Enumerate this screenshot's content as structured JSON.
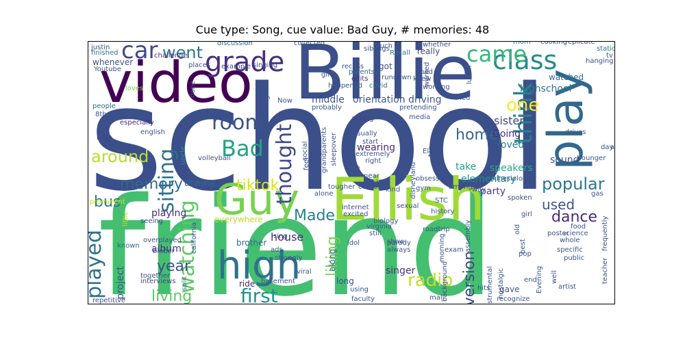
{
  "figure": {
    "title": "Cue type: Song, cue value: Bad Guy, # memories: 48"
  },
  "wordcloud": {
    "words": [
      {
        "text": "school",
        "color": "#3b4f8a"
      },
      {
        "text": "friend",
        "color": "#44bf70"
      },
      {
        "text": "Billie",
        "color": "#3b4f8a"
      },
      {
        "text": "video",
        "color": "#440154"
      },
      {
        "text": "Eilish",
        "color": "#a0da39"
      },
      {
        "text": "Guy",
        "color": "#7ad151"
      },
      {
        "text": "high",
        "color": "#2c728e"
      },
      {
        "text": "play",
        "color": "#31688e"
      },
      {
        "text": "class",
        "color": "#228c8d"
      },
      {
        "text": "came",
        "color": "#35b779"
      },
      {
        "text": "grade",
        "color": "#472f7d"
      },
      {
        "text": "car",
        "color": "#3e4989"
      },
      {
        "text": "went",
        "color": "#2a788e"
      },
      {
        "text": "room",
        "color": "#3b528b"
      },
      {
        "text": "Bad",
        "color": "#20a386"
      },
      {
        "text": "think",
        "color": "#26828e"
      },
      {
        "text": "one",
        "color": "#fde725"
      },
      {
        "text": "sitting",
        "color": "#2c728e"
      },
      {
        "text": "watching",
        "color": "#5ec962"
      },
      {
        "text": "thought",
        "color": "#3e4989"
      },
      {
        "text": "tiktok",
        "color": "#d8e219"
      },
      {
        "text": "first",
        "color": "#21918c"
      },
      {
        "text": "played",
        "color": "#2c728e"
      },
      {
        "text": "memory",
        "color": "#31688e"
      },
      {
        "text": "around",
        "color": "#b5de2b"
      },
      {
        "text": "popular",
        "color": "#2a788e"
      },
      {
        "text": "radio",
        "color": "#c2df23"
      },
      {
        "text": "dance",
        "color": "#482878"
      },
      {
        "text": "liking",
        "color": "#7ad151"
      },
      {
        "text": "home",
        "color": "#31688e"
      },
      {
        "text": "year",
        "color": "#3b528b"
      },
      {
        "text": "living",
        "color": "#5ec962"
      },
      {
        "text": "version",
        "color": "#3e4989"
      },
      {
        "text": "bus",
        "color": "#2a788e"
      },
      {
        "text": "Made",
        "color": "#277f8e"
      },
      {
        "text": "used",
        "color": "#3b528b"
      },
      {
        "text": "highschool",
        "color": "#2a788e"
      },
      {
        "text": "album",
        "color": "#46327e"
      },
      {
        "text": "house",
        "color": "#472f7d"
      },
      {
        "text": "sister",
        "color": "#3e4989"
      },
      {
        "text": "project",
        "color": "#3b528b"
      },
      {
        "text": "drama",
        "color": "#31688e"
      },
      {
        "text": "orientation driving",
        "color": "#39568c"
      },
      {
        "text": "middle",
        "color": "#3b528b"
      },
      {
        "text": "wearing",
        "color": "#482878"
      },
      {
        "text": "Going",
        "color": "#46327e"
      },
      {
        "text": "loved",
        "color": "#2a788e"
      },
      {
        "text": "sound",
        "color": "#3b528b"
      },
      {
        "text": "speakers",
        "color": "#25ab82"
      },
      {
        "text": "take",
        "color": "#1fa088"
      },
      {
        "text": "party",
        "color": "#433e85"
      },
      {
        "text": "elementary",
        "color": "#228c8d"
      },
      {
        "text": "playing",
        "color": "#472c7a"
      },
      {
        "text": "singer",
        "color": "#46327e"
      },
      {
        "text": "brother",
        "color": "#31688e"
      },
      {
        "text": "ride",
        "color": "#482475"
      },
      {
        "text": "long",
        "color": "#3b528b"
      },
      {
        "text": "along",
        "color": "#31688e"
      },
      {
        "text": "everywhere",
        "color": "#bddf26"
      },
      {
        "text": "watched",
        "color": "#2f6c8e"
      },
      {
        "text": "really",
        "color": "#3e4989"
      },
      {
        "text": "got",
        "color": "#3b528b"
      },
      {
        "text": "whenever",
        "color": "#3b528b"
      },
      {
        "text": "finished",
        "color": "#2c728e"
      },
      {
        "text": "discussion",
        "color": "#31688e"
      },
      {
        "text": "challenge",
        "color": "#482878"
      },
      {
        "text": "singing",
        "color": "#3e4989"
      },
      {
        "text": "collected",
        "color": "#39568c"
      },
      {
        "text": "siblings",
        "color": "#3b528b"
      },
      {
        "text": "Recall",
        "color": "#2a788e"
      },
      {
        "text": "whether",
        "color": "#3b528b"
      },
      {
        "text": "mom",
        "color": "#31688e"
      },
      {
        "text": "cooking",
        "color": "#3e4989"
      },
      {
        "text": "replicate",
        "color": "#3b528b"
      },
      {
        "text": "station",
        "color": "#2c728e"
      },
      {
        "text": "hanging",
        "color": "#3b528b"
      },
      {
        "text": "example",
        "color": "#3e4989"
      },
      {
        "text": "parents",
        "color": "#31688e"
      },
      {
        "text": "edits",
        "color": "#46327e"
      },
      {
        "text": "covid",
        "color": "#2c728e"
      },
      {
        "text": "gift",
        "color": "#3b528b"
      },
      {
        "text": "recess",
        "color": "#3b528b"
      },
      {
        "text": "loves",
        "color": "#7ad151"
      },
      {
        "text": "people",
        "color": "#31688e"
      },
      {
        "text": "8th",
        "color": "#3b528b"
      },
      {
        "text": "especially",
        "color": "#482878"
      },
      {
        "text": "english",
        "color": "#3b528b"
      },
      {
        "text": "bass",
        "color": "#3e4989"
      },
      {
        "text": "enjoy",
        "color": "#3b528b"
      },
      {
        "text": "volleyball",
        "color": "#3b528b"
      },
      {
        "text": "uncle",
        "color": "#21918c"
      },
      {
        "text": "prominent",
        "color": "#c8e020"
      },
      {
        "text": "little",
        "color": "#b5de2b"
      },
      {
        "text": "seeing",
        "color": "#3b528b"
      },
      {
        "text": "known",
        "color": "#31688e"
      },
      {
        "text": "overplayed",
        "color": "#3b528b"
      },
      {
        "text": "bieber",
        "color": "#3b528b"
      },
      {
        "text": "together",
        "color": "#3b528b"
      },
      {
        "text": "interviews",
        "color": "#3e4989"
      },
      {
        "text": "split",
        "color": "#2c728e"
      },
      {
        "text": "repetitive",
        "color": "#3b528b"
      },
      {
        "text": "asking",
        "color": "#3e4989"
      },
      {
        "text": "usually",
        "color": "#3b528b"
      },
      {
        "text": "start",
        "color": "#3b528b"
      },
      {
        "text": "extremely",
        "color": "#3b528b"
      },
      {
        "text": "right",
        "color": "#3b528b"
      },
      {
        "text": "sleepover",
        "color": "#3b528b"
      },
      {
        "text": "grandparents",
        "color": "#3b528b"
      },
      {
        "text": "social",
        "color": "#3b528b"
      },
      {
        "text": "feel",
        "color": "#3b528b"
      },
      {
        "text": "Ikea",
        "color": "#3b528b"
      },
      {
        "text": "tougher",
        "color": "#3b528b"
      },
      {
        "text": "alone",
        "color": "#3b528b"
      },
      {
        "text": "comes",
        "color": "#3b528b"
      },
      {
        "text": "kind",
        "color": "#3b528b"
      },
      {
        "text": "sexual",
        "color": "#3b528b"
      },
      {
        "text": "internet",
        "color": "#3b528b"
      },
      {
        "text": "excited",
        "color": "#3b528b"
      },
      {
        "text": "biology",
        "color": "#3b528b"
      },
      {
        "text": "STC",
        "color": "#3b528b"
      },
      {
        "text": "history",
        "color": "#3b528b"
      },
      {
        "text": "virginia",
        "color": "#3b528b"
      },
      {
        "text": "parody",
        "color": "#3b528b"
      },
      {
        "text": "roadtrip",
        "color": "#3b528b"
      },
      {
        "text": "idol",
        "color": "#3b528b"
      },
      {
        "text": "still",
        "color": "#3b528b"
      },
      {
        "text": "show",
        "color": "#3b528b"
      },
      {
        "text": "always",
        "color": "#3b528b"
      },
      {
        "text": "morning",
        "color": "#3b528b"
      },
      {
        "text": "exam",
        "color": "#3b528b"
      },
      {
        "text": "background",
        "color": "#3b528b"
      },
      {
        "text": "instrumental",
        "color": "#3b528b"
      },
      {
        "text": "nostalgic",
        "color": "#3b528b"
      },
      {
        "text": "hits",
        "color": "#3b528b"
      },
      {
        "text": "gave",
        "color": "#3b528b"
      },
      {
        "text": "recognize",
        "color": "#3b528b"
      },
      {
        "text": "faculty",
        "color": "#3b528b"
      },
      {
        "text": "mall",
        "color": "#3b528b"
      },
      {
        "text": "using",
        "color": "#3b528b"
      },
      {
        "text": "viral",
        "color": "#3b528b"
      },
      {
        "text": "basement",
        "color": "#3b528b"
      },
      {
        "text": "strongly",
        "color": "#3b528b"
      },
      {
        "text": "ads",
        "color": "#3b528b"
      },
      {
        "text": "sing",
        "color": "#3b528b"
      },
      {
        "text": "california",
        "color": "#3b528b"
      },
      {
        "text": "whole",
        "color": "#3b528b"
      },
      {
        "text": "specific",
        "color": "#3b528b"
      },
      {
        "text": "public",
        "color": "#3b528b"
      },
      {
        "text": "teacher",
        "color": "#3b528b"
      },
      {
        "text": "science",
        "color": "#3b528b"
      },
      {
        "text": "food",
        "color": "#3b528b"
      },
      {
        "text": "frequently",
        "color": "#3b528b"
      },
      {
        "text": "poster",
        "color": "#3b528b"
      },
      {
        "text": "best",
        "color": "#3b528b"
      },
      {
        "text": "old",
        "color": "#3b528b"
      },
      {
        "text": "pop",
        "color": "#3b528b"
      },
      {
        "text": "end",
        "color": "#3b528b"
      },
      {
        "text": "artist",
        "color": "#3b528b"
      },
      {
        "text": "Evening",
        "color": "#3b528b"
      },
      {
        "text": "well",
        "color": "#3b528b"
      },
      {
        "text": "girl",
        "color": "#3b528b"
      },
      {
        "text": "spoken",
        "color": "#3b528b"
      },
      {
        "text": "kinesiology",
        "color": "#3b528b"
      },
      {
        "text": "gas",
        "color": "#3b528b"
      },
      {
        "text": "younger",
        "color": "#3b528b"
      },
      {
        "text": "day",
        "color": "#3b528b"
      },
      {
        "text": "art",
        "color": "#3b528b"
      },
      {
        "text": "drives",
        "color": "#3b528b"
      },
      {
        "text": "top",
        "color": "#3b528b"
      },
      {
        "text": "Ellen",
        "color": "#3b528b"
      },
      {
        "text": "amongst",
        "color": "#3b528b"
      },
      {
        "text": "obsessed",
        "color": "#3b528b"
      },
      {
        "text": "gym",
        "color": "#3b528b"
      },
      {
        "text": "media",
        "color": "#3b528b"
      },
      {
        "text": "disneyland",
        "color": "#3b528b"
      },
      {
        "text": "near",
        "color": "#3b528b"
      },
      {
        "text": "table",
        "color": "#3b528b"
      },
      {
        "text": "way",
        "color": "#3b528b"
      },
      {
        "text": "assembly",
        "color": "#3b528b"
      },
      {
        "text": "pretending",
        "color": "#3b528b"
      },
      {
        "text": "probably",
        "color": "#3b528b"
      },
      {
        "text": "tried",
        "color": "#3b528b"
      },
      {
        "text": "Now",
        "color": "#3b528b"
      },
      {
        "text": "becoming",
        "color": "#3b528b"
      },
      {
        "text": "done",
        "color": "#3b528b"
      },
      {
        "text": "justin",
        "color": "#3b528b"
      },
      {
        "text": "Youtube",
        "color": "#3b528b"
      },
      {
        "text": "places",
        "color": "#3b528b"
      },
      {
        "text": "much",
        "color": "#3b528b"
      },
      {
        "text": "rundown",
        "color": "#3b528b"
      },
      {
        "text": "worked",
        "color": "#3b528b"
      },
      {
        "text": "bed",
        "color": "#3b528b"
      },
      {
        "text": "knew",
        "color": "#3b528b"
      },
      {
        "text": "working",
        "color": "#3b528b"
      },
      {
        "text": "lunch",
        "color": "#3b528b"
      },
      {
        "text": "happened",
        "color": "#3b528b"
      },
      {
        "text": "tv",
        "color": "#3b528b"
      }
    ]
  }
}
